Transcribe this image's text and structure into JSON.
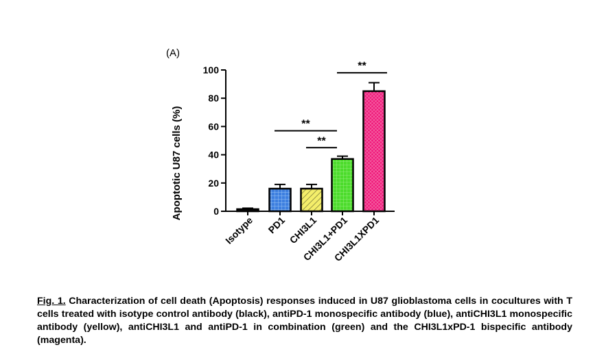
{
  "chart_data": {
    "type": "bar",
    "panel_label": "(A)",
    "categories": [
      "Isotype",
      "PD1",
      "CHI3L1",
      "CHI3L1+PD1",
      "CHI3L1XPD1"
    ],
    "values": [
      1.5,
      16,
      16,
      37,
      85
    ],
    "errors": [
      0.7,
      3,
      3,
      2,
      6
    ],
    "bar_colors": [
      "#111111",
      "#3d7fe0",
      "#f4ee6a",
      "#4cdc2c",
      "#f0197a"
    ],
    "bar_patterns": [
      "solid",
      "grid",
      "diagonal",
      "grid",
      "grid"
    ],
    "ylabel": "Apoptotic U87 cells (%)",
    "xlabel": "",
    "ylim": [
      0,
      100
    ],
    "yticks": [
      0,
      20,
      40,
      60,
      80,
      100
    ],
    "grid": false,
    "significance": [
      {
        "from": "PD1",
        "to": "CHI3L1+PD1",
        "label": "**",
        "level": 57
      },
      {
        "from": "CHI3L1",
        "to": "CHI3L1+PD1",
        "label": "**",
        "level": 45
      },
      {
        "from": "CHI3L1+PD1",
        "to": "CHI3L1XPD1",
        "label": "**",
        "level": 98
      }
    ]
  },
  "caption": {
    "fig_num": "Fig. 1.",
    "text": " Characterization of cell death (Apoptosis) responses induced in U87 glioblastoma cells in cocultures with T cells treated with isotype control antibody (black), antiPD-1 monospecific antibody (blue), antiCHI3L1 monospecific antibody (yellow), antiCHI3L1 and antiPD-1 in combination (green) and the CHI3L1xPD-1 bispecific antibody (magenta)."
  }
}
